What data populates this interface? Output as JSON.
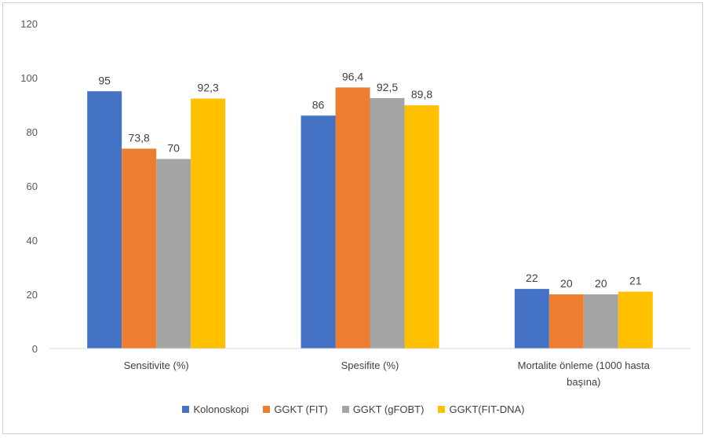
{
  "chart_data": {
    "type": "bar",
    "categories": [
      "Sensitivite (%)",
      "Spesifite (%)",
      "Mortalite  önleme (1000 hasta başına)"
    ],
    "category_lines": [
      [
        "Sensitivite (%)"
      ],
      [
        "Spesifite (%)"
      ],
      [
        "Mortalite  önleme (1000 hasta",
        "başına)"
      ]
    ],
    "series": [
      {
        "name": "Kolonoskopi",
        "values": [
          95,
          86,
          22
        ],
        "labels": [
          "95",
          "86",
          "22"
        ],
        "color": "#4472C4"
      },
      {
        "name": "GGKT (FIT)",
        "values": [
          73.8,
          96.4,
          20
        ],
        "labels": [
          "73,8",
          "96,4",
          "20"
        ],
        "color": "#ED7D31"
      },
      {
        "name": "GGKT (gFOBT)",
        "values": [
          70,
          92.5,
          20
        ],
        "labels": [
          "70",
          "92,5",
          "20"
        ],
        "color": "#A5A5A5"
      },
      {
        "name": "GGKT(FIT-DNA)",
        "values": [
          92.3,
          89.8,
          21
        ],
        "labels": [
          "92,3",
          "89,8",
          "21"
        ],
        "color": "#FFC000"
      }
    ],
    "ylim": [
      0,
      120
    ],
    "yticks": [
      "0",
      "20",
      "40",
      "60",
      "80",
      "100",
      "120"
    ],
    "grid": false,
    "legend_position": "bottom",
    "title": "",
    "xlabel": "",
    "ylabel": ""
  }
}
